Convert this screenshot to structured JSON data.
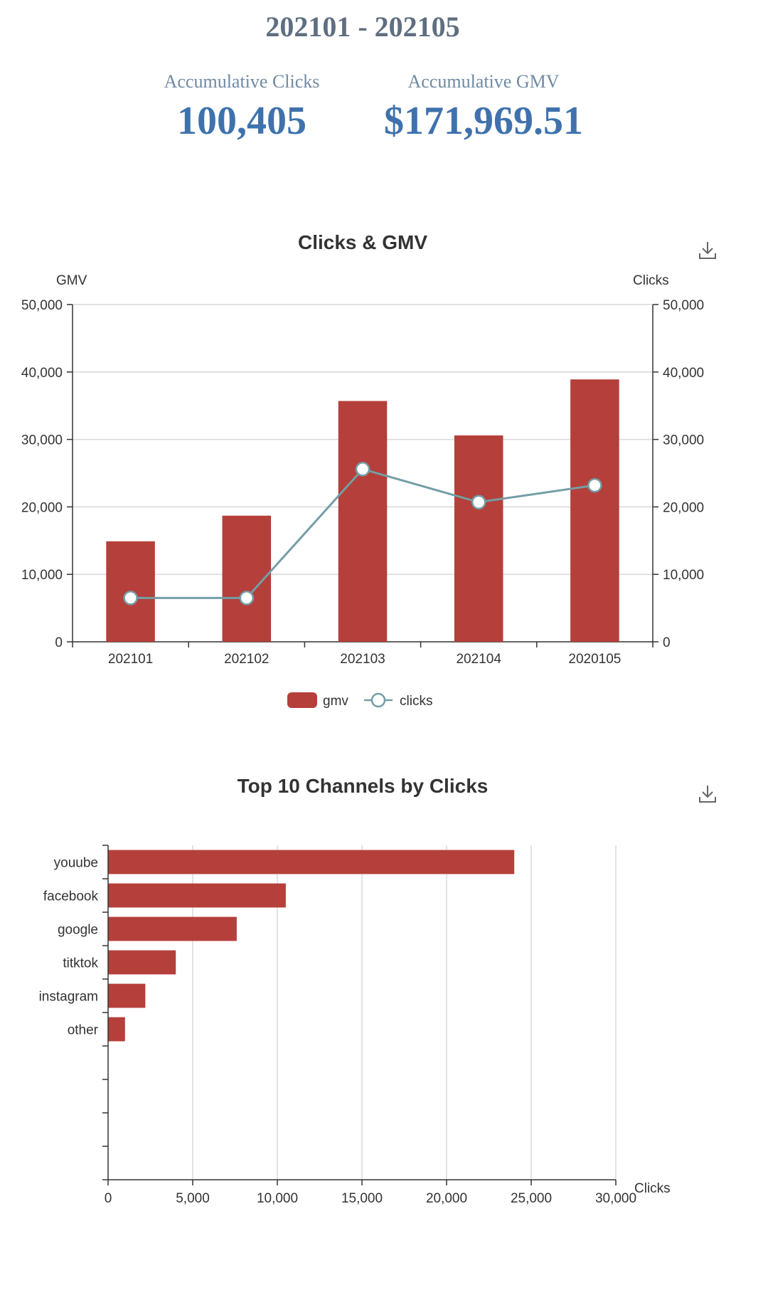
{
  "header": {
    "range": "202101 - 202105",
    "kpis": [
      {
        "label": "Accumulative Clicks",
        "value": "100,405"
      },
      {
        "label": "Accumulative GMV",
        "value": "$171,969.51"
      }
    ]
  },
  "colors": {
    "bar": "#b53f3a",
    "line": "#739ea6",
    "axis": "#333333",
    "grid": "#d9d9d9"
  },
  "icons": {
    "download": "download-icon"
  },
  "chart_data": [
    {
      "type": "bar",
      "title": "Clicks & GMV",
      "categories": [
        "202101",
        "202102",
        "202103",
        "202104",
        "2020105"
      ],
      "series": [
        {
          "name": "gmv",
          "type": "bar",
          "axis": "left",
          "values": [
            14900,
            18700,
            35700,
            30600,
            38900
          ]
        },
        {
          "name": "clicks",
          "type": "line",
          "axis": "right",
          "values": [
            6500,
            6500,
            25600,
            20700,
            23200
          ]
        }
      ],
      "ylabel_left": "GMV",
      "ylabel_right": "Clicks",
      "ylim_left": [
        0,
        50000
      ],
      "ylim_right": [
        0,
        50000
      ],
      "yticks": [
        "0",
        "10,000",
        "20,000",
        "30,000",
        "40,000",
        "50,000"
      ],
      "grid": true,
      "legend": "bottom"
    },
    {
      "type": "bar",
      "orientation": "horizontal",
      "title": "Top 10 Channels by Clicks",
      "categories": [
        "youube",
        "facebook",
        "google",
        "titktok",
        "instagram",
        "other"
      ],
      "slots": 10,
      "values": [
        24000,
        10500,
        7600,
        4000,
        2200,
        1000
      ],
      "xlabel": "Clicks",
      "xlim": [
        0,
        30000
      ],
      "xticks": [
        "0",
        "5,000",
        "10,000",
        "15,000",
        "20,000",
        "25,000",
        "30,000"
      ],
      "grid": true
    }
  ]
}
